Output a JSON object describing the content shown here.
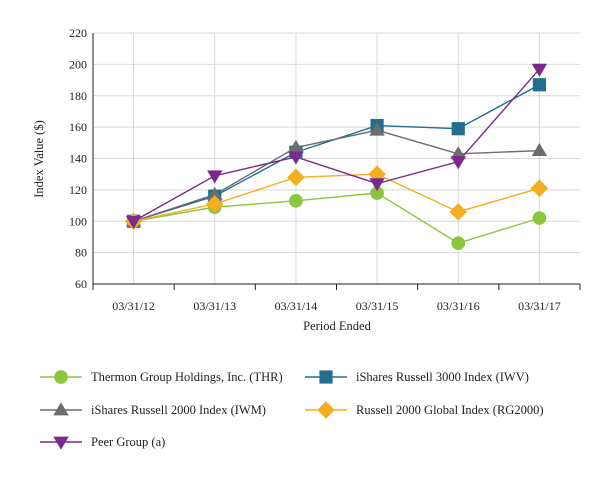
{
  "chart_data": {
    "type": "line",
    "title": "",
    "xlabel": "Period Ended",
    "ylabel": "Index Value ($)",
    "categories": [
      "03/31/12",
      "03/31/13",
      "03/31/14",
      "03/31/15",
      "03/31/16",
      "03/31/17"
    ],
    "ylim": [
      60,
      220
    ],
    "yticks": [
      60,
      80,
      100,
      120,
      140,
      160,
      180,
      200,
      220
    ],
    "grid": true,
    "legend_position": "bottom",
    "series": [
      {
        "name": "Thermon Group Holdings, Inc. (THR)",
        "color": "#8cc63f",
        "marker": "circle",
        "values": [
          100,
          109,
          113,
          118,
          86,
          102
        ]
      },
      {
        "name": "iShares Russell 3000 Index (IWV)",
        "color": "#226e8f",
        "marker": "square",
        "values": [
          100,
          116,
          144,
          161,
          159,
          187
        ]
      },
      {
        "name": "iShares Russell 2000 Index (IWM)",
        "color": "#6d6d6d",
        "marker": "triangle-up",
        "values": [
          100,
          117,
          147,
          158,
          143,
          145
        ]
      },
      {
        "name": "Russell 2000 Global Index (RG2000)",
        "color": "#f5ae20",
        "marker": "diamond",
        "values": [
          100,
          111,
          128,
          130,
          106,
          121
        ]
      },
      {
        "name": "Peer Group (a)",
        "color": "#7a2a8c",
        "marker": "triangle-down",
        "values": [
          100,
          129,
          141,
          124,
          138,
          197
        ]
      }
    ]
  }
}
